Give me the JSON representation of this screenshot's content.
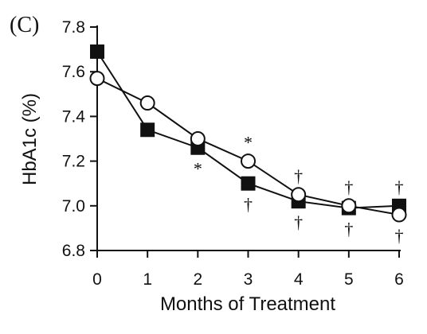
{
  "chart_data": {
    "type": "line",
    "panel_label": "(C)",
    "xlabel": "Months of Treatment",
    "ylabel": "HbA1c (%)",
    "x": [
      0,
      1,
      2,
      3,
      4,
      5,
      6
    ],
    "x_tick_labels": [
      "0",
      "1",
      "2",
      "3",
      "4",
      "5",
      "6"
    ],
    "xlim": [
      0,
      6
    ],
    "y_ticks": [
      6.8,
      7.0,
      7.2,
      7.4,
      7.6,
      7.8
    ],
    "y_tick_labels": [
      "6.8",
      "7.0",
      "7.2",
      "7.4",
      "7.6",
      "7.8"
    ],
    "ylim": [
      6.8,
      7.8
    ],
    "grid": false,
    "legend": "none",
    "series": [
      {
        "marker": "filled-square",
        "color": "#111111",
        "values": [
          7.69,
          7.34,
          7.26,
          7.1,
          7.02,
          6.99,
          7.0
        ]
      },
      {
        "marker": "open-circle",
        "color": "#111111",
        "values": [
          7.57,
          7.46,
          7.3,
          7.2,
          7.05,
          7.0,
          6.96
        ]
      }
    ],
    "annotations": [
      {
        "x": 2,
        "text": "*",
        "position": "below"
      },
      {
        "x": 3,
        "text": "*",
        "position": "above"
      },
      {
        "x": 3,
        "text": "†",
        "position": "below"
      },
      {
        "x": 4,
        "text": "†",
        "position": "above"
      },
      {
        "x": 4,
        "text": "†",
        "position": "below"
      },
      {
        "x": 5,
        "text": "†",
        "position": "above"
      },
      {
        "x": 5,
        "text": "†",
        "position": "below"
      },
      {
        "x": 6,
        "text": "†",
        "position": "above"
      },
      {
        "x": 6,
        "text": "†",
        "position": "below"
      }
    ]
  }
}
